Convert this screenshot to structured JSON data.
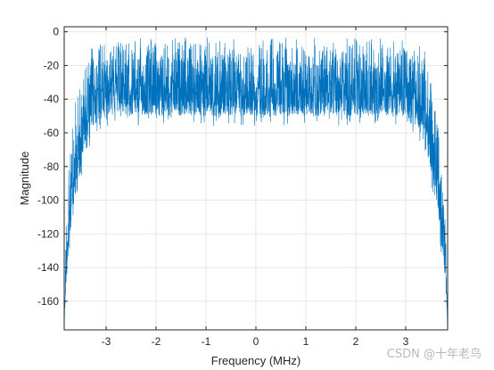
{
  "chart_data": {
    "type": "line",
    "title": "",
    "xlabel": "Frequency (MHz)",
    "ylabel": "Magnitude",
    "xlim": [
      -3.84,
      3.84
    ],
    "ylim": [
      -177,
      3
    ],
    "x_ticks": [
      -3,
      -2,
      -1,
      0,
      1,
      2,
      3
    ],
    "y_ticks": [
      0,
      -20,
      -40,
      -60,
      -80,
      -100,
      -120,
      -140,
      -160
    ],
    "grid": true,
    "legend": "none",
    "color": "#0072BD",
    "series": [
      {
        "envelope_upper": {
          "x": [
            -3.84,
            -3.8,
            -3.75,
            -3.7,
            -3.65,
            -3.6,
            -3.55,
            -3.5,
            -3.45,
            -3.4,
            -3.35,
            -3.3,
            -3.2,
            -3.1,
            -3.0,
            0.0,
            3.0,
            3.1,
            3.2,
            3.3,
            3.35,
            3.4,
            3.45,
            3.5,
            3.55,
            3.6,
            3.65,
            3.7,
            3.75,
            3.8,
            3.84
          ],
          "y": [
            -168,
            -100,
            -80,
            -62,
            -45,
            -35,
            -28,
            -22,
            -15,
            -10,
            -7,
            -5,
            -3,
            -2,
            -2,
            -2,
            -2,
            -2,
            -3,
            -5,
            -7,
            -10,
            -14,
            -22,
            -30,
            -40,
            -52,
            -68,
            -88,
            -110,
            -170
          ]
        },
        "envelope_lower": {
          "x": [
            -3.84,
            -3.8,
            -3.75,
            -3.7,
            -3.65,
            -3.6,
            -3.55,
            -3.5,
            -3.45,
            -3.4,
            -3.35,
            -3.3,
            -3.2,
            -3.1,
            -3.0,
            0.0,
            3.0,
            3.1,
            3.2,
            3.3,
            3.35,
            3.4,
            3.45,
            3.5,
            3.55,
            3.6,
            3.65,
            3.7,
            3.75,
            3.8,
            3.84
          ],
          "y": [
            -175,
            -150,
            -130,
            -115,
            -105,
            -98,
            -90,
            -82,
            -75,
            -70,
            -65,
            -60,
            -55,
            -52,
            -50,
            -50,
            -50,
            -52,
            -55,
            -60,
            -65,
            -70,
            -76,
            -84,
            -92,
            -100,
            -110,
            -122,
            -135,
            -150,
            -175
          ]
        }
      }
    ]
  },
  "watermark": "CSDN @十年老鸟"
}
